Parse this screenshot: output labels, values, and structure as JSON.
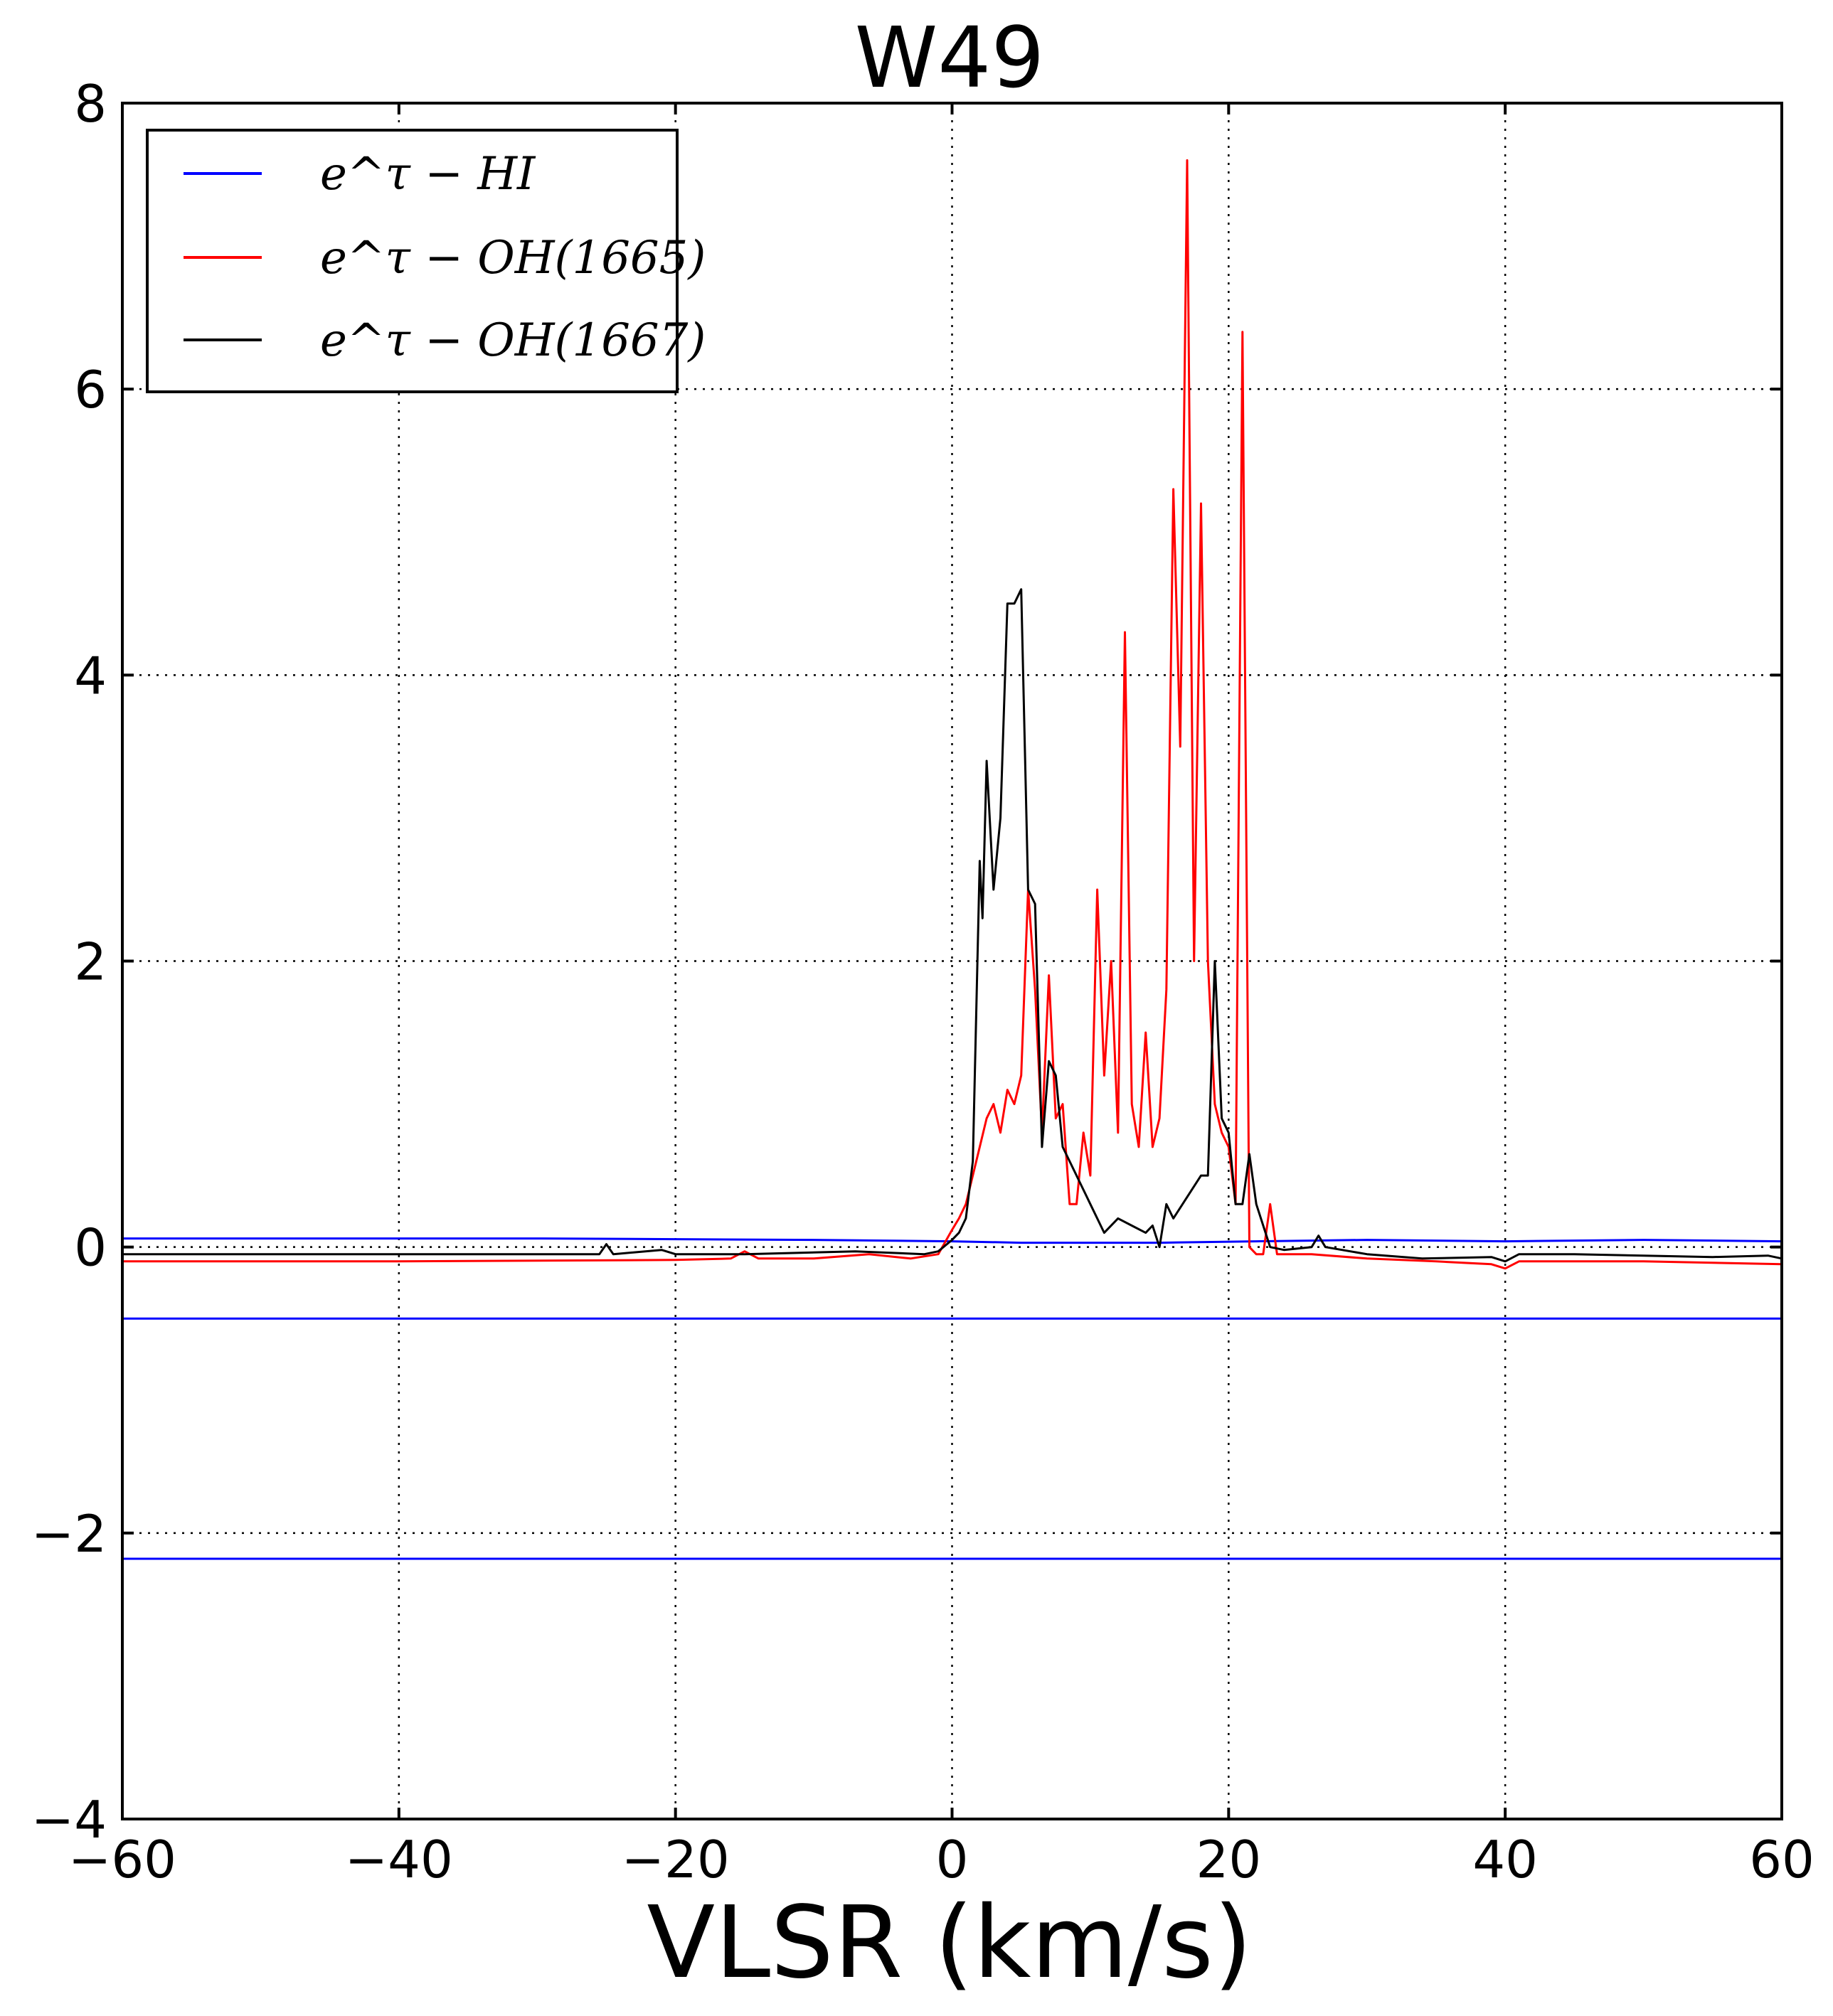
{
  "chart_data": {
    "type": "line",
    "title": "W49",
    "xlabel": "VLSR (km/s)",
    "ylabel": "",
    "xlim": [
      -60,
      60
    ],
    "ylim": [
      -4,
      8
    ],
    "xticks": [
      -60,
      -40,
      -20,
      0,
      20,
      40,
      60
    ],
    "yticks": [
      -4,
      -2,
      0,
      2,
      4,
      6,
      8
    ],
    "xtick_labels": [
      "−60",
      "−40",
      "−20",
      "0",
      "20",
      "40",
      "60"
    ],
    "ytick_labels": [
      "−4",
      "−2",
      "0",
      "2",
      "4",
      "6",
      "8"
    ],
    "grid": true,
    "legend_position": "upper-left",
    "series": [
      {
        "name": "e^τ − HI",
        "color": "#0000ff",
        "x": [
          -60,
          -30,
          -10,
          0,
          5,
          15,
          22,
          30,
          40,
          50,
          60
        ],
        "y": [
          0.06,
          0.06,
          0.05,
          0.04,
          0.03,
          0.03,
          0.04,
          0.05,
          0.04,
          0.05,
          0.04
        ]
      },
      {
        "name": "e^τ − OH(1665)",
        "color": "#ff0000",
        "x": [
          -60,
          -40,
          -20,
          -16,
          -15,
          -14,
          -10,
          -6,
          -3,
          -1,
          0,
          0.5,
          1,
          2,
          2.5,
          3,
          3.5,
          4,
          4.5,
          5,
          5.5,
          6,
          6.5,
          7,
          7.5,
          8,
          8.5,
          9,
          9.5,
          10,
          10.5,
          11,
          11.5,
          12,
          12.5,
          13,
          13.5,
          14,
          14.5,
          15,
          15.5,
          16,
          16.5,
          17,
          17.5,
          18,
          18.5,
          19,
          19.5,
          20,
          20.5,
          21,
          21.5,
          22,
          22.5,
          23,
          23.5,
          24,
          26,
          30,
          35,
          39,
          40,
          41,
          45,
          50,
          55,
          60
        ],
        "y": [
          -0.1,
          -0.1,
          -0.09,
          -0.08,
          -0.03,
          -0.08,
          -0.08,
          -0.05,
          -0.08,
          -0.05,
          0.12,
          0.2,
          0.3,
          0.7,
          0.9,
          1.0,
          0.8,
          1.1,
          1.0,
          1.2,
          2.5,
          1.8,
          0.8,
          1.9,
          0.9,
          1.0,
          0.3,
          0.3,
          0.8,
          0.5,
          2.5,
          1.2,
          2.0,
          0.8,
          4.3,
          1.0,
          0.7,
          1.5,
          0.7,
          0.9,
          1.8,
          5.3,
          3.5,
          7.6,
          2.0,
          5.2,
          2.0,
          1.0,
          0.8,
          0.7,
          0.3,
          6.4,
          0.0,
          -0.05,
          -0.05,
          0.3,
          -0.05,
          -0.05,
          -0.05,
          -0.08,
          -0.1,
          -0.12,
          -0.15,
          -0.1,
          -0.1,
          -0.1,
          -0.11,
          -0.12
        ]
      },
      {
        "name": "e^τ − OH(1667)",
        "color": "#000000",
        "x": [
          -60,
          -30,
          -25.5,
          -25,
          -24.5,
          -21,
          -20,
          -15,
          -7,
          -2,
          -1,
          0,
          0.5,
          1,
          1.5,
          2,
          2.2,
          2.5,
          3,
          3.5,
          4,
          4.5,
          5,
          5.5,
          6,
          6.5,
          7,
          7.5,
          8,
          9,
          10,
          11,
          12,
          13,
          14,
          14.5,
          15,
          15.5,
          16,
          17,
          18,
          18.5,
          19,
          19.5,
          20,
          20.5,
          21,
          21.5,
          22,
          23,
          24,
          26,
          26.5,
          27,
          30,
          34,
          39,
          40,
          41,
          45,
          50,
          55,
          59,
          60
        ],
        "y": [
          -0.05,
          -0.05,
          -0.05,
          0.02,
          -0.05,
          -0.02,
          -0.05,
          -0.05,
          -0.03,
          -0.05,
          -0.03,
          0.05,
          0.1,
          0.2,
          0.6,
          2.7,
          2.3,
          3.4,
          2.5,
          3.0,
          4.5,
          4.5,
          4.6,
          2.5,
          2.4,
          0.7,
          1.3,
          1.2,
          0.7,
          0.5,
          0.3,
          0.1,
          0.2,
          0.15,
          0.1,
          0.15,
          0.0,
          0.3,
          0.2,
          0.35,
          0.5,
          0.5,
          2.0,
          0.9,
          0.8,
          0.3,
          0.3,
          0.65,
          0.3,
          0.0,
          -0.02,
          0.0,
          0.08,
          0.0,
          -0.05,
          -0.08,
          -0.07,
          -0.1,
          -0.05,
          -0.05,
          -0.06,
          -0.07,
          -0.06,
          -0.08
        ]
      },
      {
        "name": "",
        "color": "#0000ff",
        "x": [
          -60,
          60
        ],
        "y": [
          -0.5,
          -0.5
        ]
      },
      {
        "name": "",
        "color": "#0000ff",
        "x": [
          -60,
          60
        ],
        "y": [
          -2.18,
          -2.18
        ]
      }
    ]
  }
}
